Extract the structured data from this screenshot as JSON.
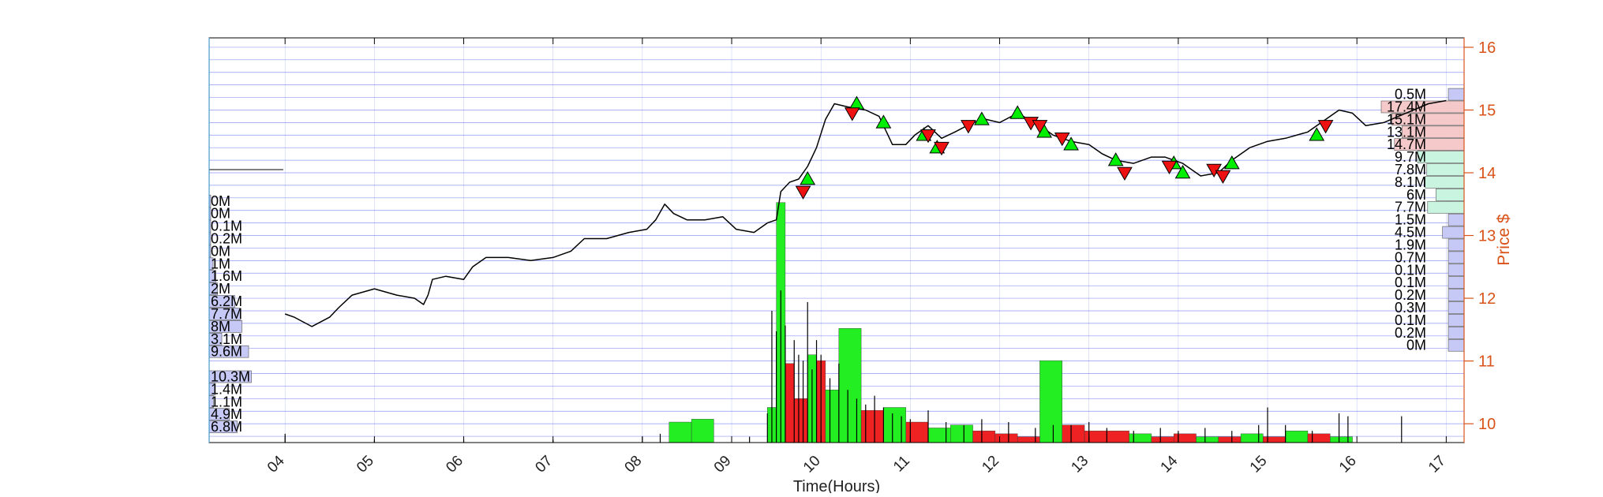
{
  "chart_data": {
    "type": "line",
    "title": "",
    "xlabel": "Time(Hours)",
    "ylabel": "Price $",
    "xlim": [
      3.15,
      17.2
    ],
    "ylim": [
      9.7,
      16.15
    ],
    "x_ticks": [
      "04",
      "05",
      "06",
      "07",
      "08",
      "09",
      "10",
      "11",
      "12",
      "13",
      "14",
      "15",
      "16",
      "17"
    ],
    "y_ticks": [
      "10",
      "11",
      "12",
      "13",
      "14",
      "15",
      "16"
    ],
    "grid": "horizontal",
    "colors": {
      "price_line": "#000000",
      "buy_marker": "#00ee00",
      "sell_marker": "#ee1111",
      "volume_up": "#22ee22",
      "volume_down": "#ee2222",
      "right_axis": "#d95319",
      "grid": "#3344ee",
      "left_profile": "#c6c9f5",
      "right_profile_upper": "#f5c9c9",
      "right_profile_middle": "#c9f5e0",
      "right_profile_lower": "#c6c9f5"
    },
    "price_series": {
      "name": "",
      "points": [
        [
          4.0,
          11.75
        ],
        [
          4.1,
          11.7
        ],
        [
          4.3,
          11.55
        ],
        [
          4.5,
          11.7
        ],
        [
          4.6,
          11.85
        ],
        [
          4.75,
          12.05
        ],
        [
          5.0,
          12.15
        ],
        [
          5.25,
          12.05
        ],
        [
          5.45,
          12.0
        ],
        [
          5.55,
          11.9
        ],
        [
          5.6,
          12.05
        ],
        [
          5.65,
          12.3
        ],
        [
          5.8,
          12.35
        ],
        [
          6.0,
          12.3
        ],
        [
          6.1,
          12.5
        ],
        [
          6.25,
          12.65
        ],
        [
          6.5,
          12.65
        ],
        [
          6.75,
          12.6
        ],
        [
          7.0,
          12.65
        ],
        [
          7.2,
          12.75
        ],
        [
          7.35,
          12.95
        ],
        [
          7.6,
          12.95
        ],
        [
          7.85,
          13.05
        ],
        [
          8.05,
          13.1
        ],
        [
          8.15,
          13.25
        ],
        [
          8.25,
          13.5
        ],
        [
          8.35,
          13.35
        ],
        [
          8.5,
          13.25
        ],
        [
          8.7,
          13.25
        ],
        [
          8.9,
          13.3
        ],
        [
          9.05,
          13.1
        ],
        [
          9.25,
          13.05
        ],
        [
          9.4,
          13.2
        ],
        [
          9.5,
          13.25
        ],
        [
          9.55,
          13.7
        ],
        [
          9.65,
          13.85
        ],
        [
          9.75,
          13.9
        ],
        [
          9.85,
          14.1
        ],
        [
          9.95,
          14.4
        ],
        [
          10.05,
          14.85
        ],
        [
          10.15,
          15.1
        ],
        [
          10.3,
          15.05
        ],
        [
          10.5,
          15.0
        ],
        [
          10.65,
          14.9
        ],
        [
          10.8,
          14.45
        ],
        [
          10.95,
          14.45
        ],
        [
          11.05,
          14.6
        ],
        [
          11.2,
          14.75
        ],
        [
          11.35,
          14.55
        ],
        [
          11.5,
          14.65
        ],
        [
          11.7,
          14.8
        ],
        [
          11.85,
          14.85
        ],
        [
          12.0,
          14.8
        ],
        [
          12.2,
          14.95
        ],
        [
          12.45,
          14.75
        ],
        [
          12.6,
          14.6
        ],
        [
          12.8,
          14.5
        ],
        [
          13.0,
          14.45
        ],
        [
          13.15,
          14.3
        ],
        [
          13.3,
          14.2
        ],
        [
          13.5,
          14.15
        ],
        [
          13.7,
          14.25
        ],
        [
          13.85,
          14.25
        ],
        [
          14.05,
          14.15
        ],
        [
          14.25,
          13.95
        ],
        [
          14.45,
          14.0
        ],
        [
          14.6,
          14.2
        ],
        [
          14.8,
          14.4
        ],
        [
          15.0,
          14.5
        ],
        [
          15.2,
          14.55
        ],
        [
          15.45,
          14.65
        ],
        [
          15.65,
          14.85
        ],
        [
          15.8,
          15.0
        ],
        [
          15.95,
          14.95
        ],
        [
          16.1,
          14.75
        ],
        [
          16.3,
          14.8
        ],
        [
          16.55,
          14.95
        ],
        [
          16.8,
          15.1
        ],
        [
          17.0,
          15.15
        ]
      ]
    },
    "flat_line": {
      "x": [
        3.15,
        3.98
      ],
      "y": 14.05
    },
    "buy_signals": [
      [
        9.85,
        13.9
      ],
      [
        10.4,
        15.1
      ],
      [
        10.7,
        14.8
      ],
      [
        11.15,
        14.6
      ],
      [
        11.3,
        14.4
      ],
      [
        11.8,
        14.85
      ],
      [
        12.2,
        14.95
      ],
      [
        12.5,
        14.65
      ],
      [
        12.8,
        14.45
      ],
      [
        13.3,
        14.2
      ],
      [
        13.95,
        14.15
      ],
      [
        14.05,
        14.0
      ],
      [
        14.6,
        14.15
      ],
      [
        15.55,
        14.6
      ]
    ],
    "sell_signals": [
      [
        9.8,
        13.7
      ],
      [
        10.35,
        14.95
      ],
      [
        11.2,
        14.6
      ],
      [
        11.35,
        14.4
      ],
      [
        11.65,
        14.75
      ],
      [
        12.35,
        14.8
      ],
      [
        12.45,
        14.75
      ],
      [
        12.7,
        14.55
      ],
      [
        13.4,
        14.0
      ],
      [
        13.9,
        14.1
      ],
      [
        14.4,
        14.05
      ],
      [
        14.5,
        13.95
      ],
      [
        15.65,
        14.75
      ]
    ],
    "volume_bins": {
      "scale_max": 100,
      "bars": [
        {
          "x0": 8.3,
          "x1": 8.55,
          "value": 7.0,
          "color": "up"
        },
        {
          "x0": 8.55,
          "x1": 8.8,
          "value": 8.0,
          "color": "up"
        },
        {
          "x0": 9.4,
          "x1": 9.5,
          "value": 12.0,
          "color": "up"
        },
        {
          "x0": 9.5,
          "x1": 9.6,
          "value": 82.0,
          "color": "up"
        },
        {
          "x0": 9.6,
          "x1": 9.7,
          "value": 27.0,
          "color": "down"
        },
        {
          "x0": 9.7,
          "x1": 9.85,
          "value": 15.0,
          "color": "down"
        },
        {
          "x0": 9.85,
          "x1": 9.95,
          "value": 30.0,
          "color": "up"
        },
        {
          "x0": 9.95,
          "x1": 10.05,
          "value": 28.0,
          "color": "down"
        },
        {
          "x0": 10.05,
          "x1": 10.2,
          "value": 18.0,
          "color": "up"
        },
        {
          "x0": 10.2,
          "x1": 10.45,
          "value": 39.0,
          "color": "up"
        },
        {
          "x0": 10.45,
          "x1": 10.7,
          "value": 11.0,
          "color": "down"
        },
        {
          "x0": 10.7,
          "x1": 10.95,
          "value": 12.0,
          "color": "up"
        },
        {
          "x0": 10.95,
          "x1": 11.2,
          "value": 7.0,
          "color": "down"
        },
        {
          "x0": 11.2,
          "x1": 11.45,
          "value": 5.0,
          "color": "up"
        },
        {
          "x0": 11.45,
          "x1": 11.7,
          "value": 6.0,
          "color": "up"
        },
        {
          "x0": 11.7,
          "x1": 11.95,
          "value": 4.0,
          "color": "down"
        },
        {
          "x0": 11.95,
          "x1": 12.2,
          "value": 3.0,
          "color": "down"
        },
        {
          "x0": 12.2,
          "x1": 12.45,
          "value": 2.0,
          "color": "down"
        },
        {
          "x0": 12.45,
          "x1": 12.7,
          "value": 28.0,
          "color": "up"
        },
        {
          "x0": 12.7,
          "x1": 12.95,
          "value": 6.0,
          "color": "down"
        },
        {
          "x0": 12.95,
          "x1": 13.2,
          "value": 4.0,
          "color": "down"
        },
        {
          "x0": 13.2,
          "x1": 13.45,
          "value": 4.0,
          "color": "down"
        },
        {
          "x0": 13.45,
          "x1": 13.7,
          "value": 3.0,
          "color": "up"
        },
        {
          "x0": 13.7,
          "x1": 13.95,
          "value": 2.0,
          "color": "down"
        },
        {
          "x0": 13.95,
          "x1": 14.2,
          "value": 3.0,
          "color": "down"
        },
        {
          "x0": 14.2,
          "x1": 14.45,
          "value": 2.0,
          "color": "up"
        },
        {
          "x0": 14.45,
          "x1": 14.7,
          "value": 2.0,
          "color": "down"
        },
        {
          "x0": 14.7,
          "x1": 14.95,
          "value": 3.0,
          "color": "up"
        },
        {
          "x0": 14.95,
          "x1": 15.2,
          "value": 2.0,
          "color": "down"
        },
        {
          "x0": 15.2,
          "x1": 15.45,
          "value": 4.0,
          "color": "up"
        },
        {
          "x0": 15.45,
          "x1": 15.7,
          "value": 3.0,
          "color": "down"
        },
        {
          "x0": 15.7,
          "x1": 15.95,
          "value": 2.0,
          "color": "up"
        }
      ],
      "spikes": [
        [
          4.0,
          3
        ],
        [
          5.0,
          1
        ],
        [
          6.0,
          1
        ],
        [
          7.0,
          1
        ],
        [
          8.0,
          2
        ],
        [
          8.2,
          3
        ],
        [
          9.2,
          2
        ],
        [
          9.4,
          10
        ],
        [
          9.45,
          45
        ],
        [
          9.5,
          38
        ],
        [
          9.55,
          52
        ],
        [
          9.6,
          40
        ],
        [
          9.7,
          35
        ],
        [
          9.75,
          30
        ],
        [
          9.8,
          28
        ],
        [
          9.85,
          48
        ],
        [
          9.9,
          25
        ],
        [
          9.95,
          35
        ],
        [
          10.0,
          30
        ],
        [
          10.1,
          22
        ],
        [
          10.2,
          27
        ],
        [
          10.3,
          18
        ],
        [
          10.4,
          15
        ],
        [
          10.5,
          13
        ],
        [
          10.6,
          16
        ],
        [
          10.7,
          12
        ],
        [
          10.8,
          10
        ],
        [
          10.9,
          9
        ],
        [
          11.0,
          8
        ],
        [
          11.2,
          11
        ],
        [
          11.4,
          7
        ],
        [
          11.6,
          6
        ],
        [
          11.8,
          8
        ],
        [
          12.1,
          7
        ],
        [
          12.4,
          5
        ],
        [
          12.6,
          6
        ],
        [
          12.8,
          6
        ],
        [
          13.0,
          7
        ],
        [
          13.2,
          5
        ],
        [
          13.5,
          4
        ],
        [
          13.8,
          5
        ],
        [
          14.0,
          4
        ],
        [
          14.3,
          5
        ],
        [
          14.6,
          4
        ],
        [
          14.9,
          6
        ],
        [
          15.0,
          12
        ],
        [
          15.2,
          6
        ],
        [
          15.5,
          4
        ],
        [
          15.8,
          10
        ],
        [
          15.9,
          9
        ],
        [
          16.5,
          9
        ]
      ]
    },
    "left_volume_profile": [
      {
        "label": "0M",
        "price": 13.55,
        "length": 0.0
      },
      {
        "label": "0M",
        "price": 13.35,
        "length": 0.0
      },
      {
        "label": "0.1M",
        "price": 13.15,
        "length": 0.01
      },
      {
        "label": "0.2M",
        "price": 12.95,
        "length": 0.02
      },
      {
        "label": "0M",
        "price": 12.75,
        "length": 0.0
      },
      {
        "label": "1M",
        "price": 12.55,
        "length": 0.1
      },
      {
        "label": "1.6M",
        "price": 12.35,
        "length": 0.17
      },
      {
        "label": "2M",
        "price": 12.15,
        "length": 0.21
      },
      {
        "label": "6.2M",
        "price": 11.95,
        "length": 0.65
      },
      {
        "label": "7.7M",
        "price": 11.75,
        "length": 0.8
      },
      {
        "label": "8M",
        "price": 11.55,
        "length": 0.83
      },
      {
        "label": "3.1M",
        "price": 11.35,
        "length": 0.32
      },
      {
        "label": "9.6M",
        "price": 11.15,
        "length": 1.0
      },
      {
        "label": "10.3M",
        "price": 10.75,
        "length": 1.07
      },
      {
        "label": "1.4M",
        "price": 10.55,
        "length": 0.15
      },
      {
        "label": "1.1M",
        "price": 10.35,
        "length": 0.11
      },
      {
        "label": "4.9M",
        "price": 10.15,
        "length": 0.51
      },
      {
        "label": "6.8M",
        "price": 9.95,
        "length": 0.71
      }
    ],
    "right_volume_profile": [
      {
        "label": "0.5M",
        "price": 15.25,
        "length": 0.03,
        "band": "lower"
      },
      {
        "label": "17.4M",
        "price": 15.05,
        "length": 1.0,
        "band": "upper"
      },
      {
        "label": "15.1M",
        "price": 14.85,
        "length": 0.87,
        "band": "upper"
      },
      {
        "label": "13.1M",
        "price": 14.65,
        "length": 0.75,
        "band": "upper"
      },
      {
        "label": "14.7M",
        "price": 14.45,
        "length": 0.84,
        "band": "upper"
      },
      {
        "label": "9.7M",
        "price": 14.25,
        "length": 0.56,
        "band": "middle"
      },
      {
        "label": "7.8M",
        "price": 14.05,
        "length": 0.45,
        "band": "middle"
      },
      {
        "label": "8.1M",
        "price": 13.85,
        "length": 0.47,
        "band": "middle"
      },
      {
        "label": "6M",
        "price": 13.65,
        "length": 0.34,
        "band": "middle"
      },
      {
        "label": "7.7M",
        "price": 13.45,
        "length": 0.44,
        "band": "middle"
      },
      {
        "label": "1.5M",
        "price": 13.25,
        "length": 0.09,
        "band": "lower"
      },
      {
        "label": "4.5M",
        "price": 13.05,
        "length": 0.26,
        "band": "lower"
      },
      {
        "label": "1.9M",
        "price": 12.85,
        "length": 0.11,
        "band": "lower"
      },
      {
        "label": "0.7M",
        "price": 12.65,
        "length": 0.04,
        "band": "lower"
      },
      {
        "label": "0.1M",
        "price": 12.45,
        "length": 0.01,
        "band": "lower"
      },
      {
        "label": "0.1M",
        "price": 12.25,
        "length": 0.01,
        "band": "lower"
      },
      {
        "label": "0.2M",
        "price": 12.05,
        "length": 0.01,
        "band": "lower"
      },
      {
        "label": "0.3M",
        "price": 11.85,
        "length": 0.02,
        "band": "lower"
      },
      {
        "label": "0.1M",
        "price": 11.65,
        "length": 0.01,
        "band": "lower"
      },
      {
        "label": "0.2M",
        "price": 11.45,
        "length": 0.01,
        "band": "lower"
      },
      {
        "label": "0M",
        "price": 11.25,
        "length": 0.0,
        "band": "lower"
      }
    ]
  }
}
